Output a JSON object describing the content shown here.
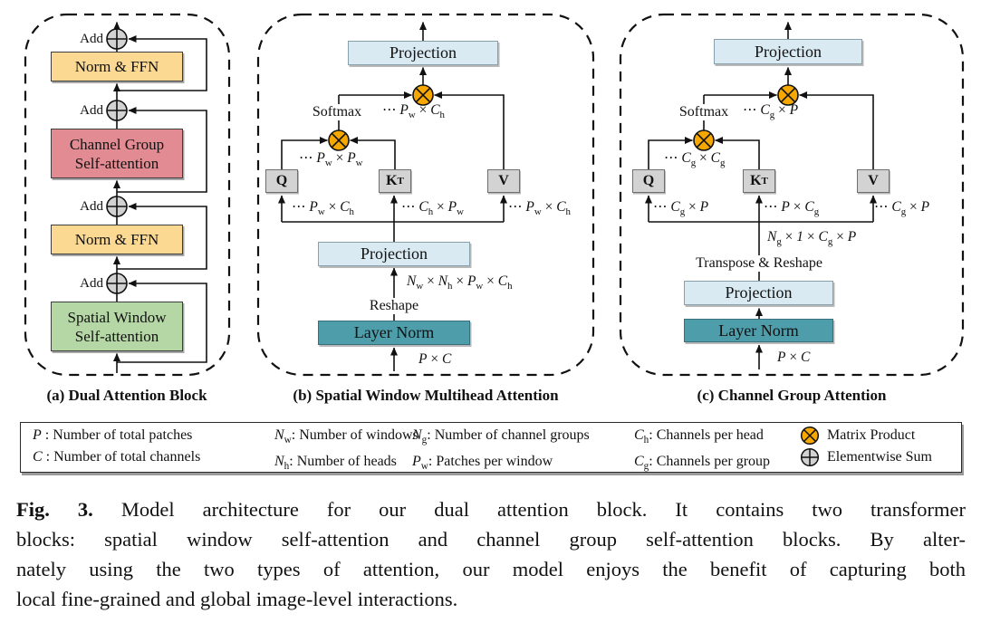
{
  "colors": {
    "norm_ffn_fill": "#FBD993",
    "channel_attention_fill": "#E28B93",
    "spatial_attention_fill": "#B5D7A5",
    "projection_fill": "#D9EAF2",
    "layer_norm_fill": "#4E9DAB",
    "qkv_fill": "#D3D3D3",
    "matrix_product_fill": "#F6A800",
    "elementwise_sum_fill": "#D2D2D2"
  },
  "icons": {
    "matrix_product": "circle-with-x",
    "elementwise_sum": "circle-with-plus"
  },
  "panel_a": {
    "caption": "(a) Dual Attention Block",
    "add_label": "Add",
    "norm_ffn_top": "Norm & FFN",
    "channel_group_attn": "Channel Group<br>Self-attention",
    "norm_ffn_bottom": "Norm & FFN",
    "spatial_window_attn": "Spatial Window<br>Self-attention"
  },
  "panel_b": {
    "caption": "(b) Spatial Window Multihead Attention",
    "projection_top": "Projection",
    "softmax": "Softmax",
    "attn_out_shape": "⋯ <i>P</i><sub>w</sub> × <i>C</i><sub>h</sub>",
    "qk_shape": "⋯ <i>P</i><sub>w</sub> × <i>P</i><sub>w</sub>",
    "q": "Q",
    "kt": "K<sup>T</sup>",
    "v": "V",
    "q_shape": "⋯ <i>P</i><sub>w</sub> × <i>C</i><sub>h</sub>",
    "k_shape": "⋯ <i>C</i><sub>h</sub> × <i>P</i><sub>w</sub>",
    "v_shape": "⋯ <i>P</i><sub>w</sub> × <i>C</i><sub>h</sub>",
    "projection_bottom": "Projection",
    "reshape": "Reshape",
    "reshape_shape": "<i>N</i><sub>w</sub> × <i>N</i><sub>h</sub> × <i>P</i><sub>w</sub> × <i>C</i><sub>h</sub>",
    "layer_norm": "Layer Norm",
    "input_shape": "<i>P</i> × <i>C</i>"
  },
  "panel_c": {
    "caption": "(c) Channel Group Attention",
    "projection_top": "Projection",
    "softmax": "Softmax",
    "attn_out_shape": "⋯ <i>C</i><sub>g</sub> × <i>P</i>",
    "qk_shape": "⋯ <i>C</i><sub>g</sub> × <i>C</i><sub>g</sub>",
    "q": "Q",
    "kt": "K<sup>T</sup>",
    "v": "V",
    "q_shape": "⋯ <i>C</i><sub>g</sub> × <i>P</i>",
    "k_shape": "⋯ <i>P</i> × <i>C</i><sub>g</sub>",
    "v_shape": "⋯ <i>C</i><sub>g</sub> × <i>P</i>",
    "transpose_reshape": "Transpose & Reshape",
    "transpose_shape": "<i>N</i><sub>g</sub> × <i>1</i> × <i>C</i><sub>g</sub> × <i>P</i>",
    "projection_bottom": "Projection",
    "layer_norm": "Layer Norm",
    "input_shape": "<i>P</i> × <i>C</i>"
  },
  "legend": {
    "columns": [
      [
        "<i>P</i> : Number of total patches",
        "<i>C</i> : Number of  total channels"
      ],
      [
        "<i>N</i><sub>w</sub>: Number of windows",
        "<i>N</i><sub>h</sub>: Number of heads"
      ],
      [
        "<i>N</i><sub>g</sub>: Number of channel groups",
        "<i>P</i><sub>w</sub>: Patches per window"
      ],
      [
        "<i>C</i><sub>h</sub>: Channels per head",
        "<i>C</i><sub>g</sub>: Channels per group"
      ]
    ],
    "matrix_product": "Matrix Product",
    "elementwise_sum": "Elementwise Sum"
  },
  "figure_caption": {
    "tag": "Fig. 3.",
    "line1": "Model architecture for our dual attention block. It contains two transformer",
    "line2": "blocks: spatial window self-attention and channel group self-attention blocks. By alter-",
    "line3": "nately using the two types of attention, our model enjoys the benefit of capturing both",
    "line4": "local fine-grained and global image-level interactions."
  }
}
